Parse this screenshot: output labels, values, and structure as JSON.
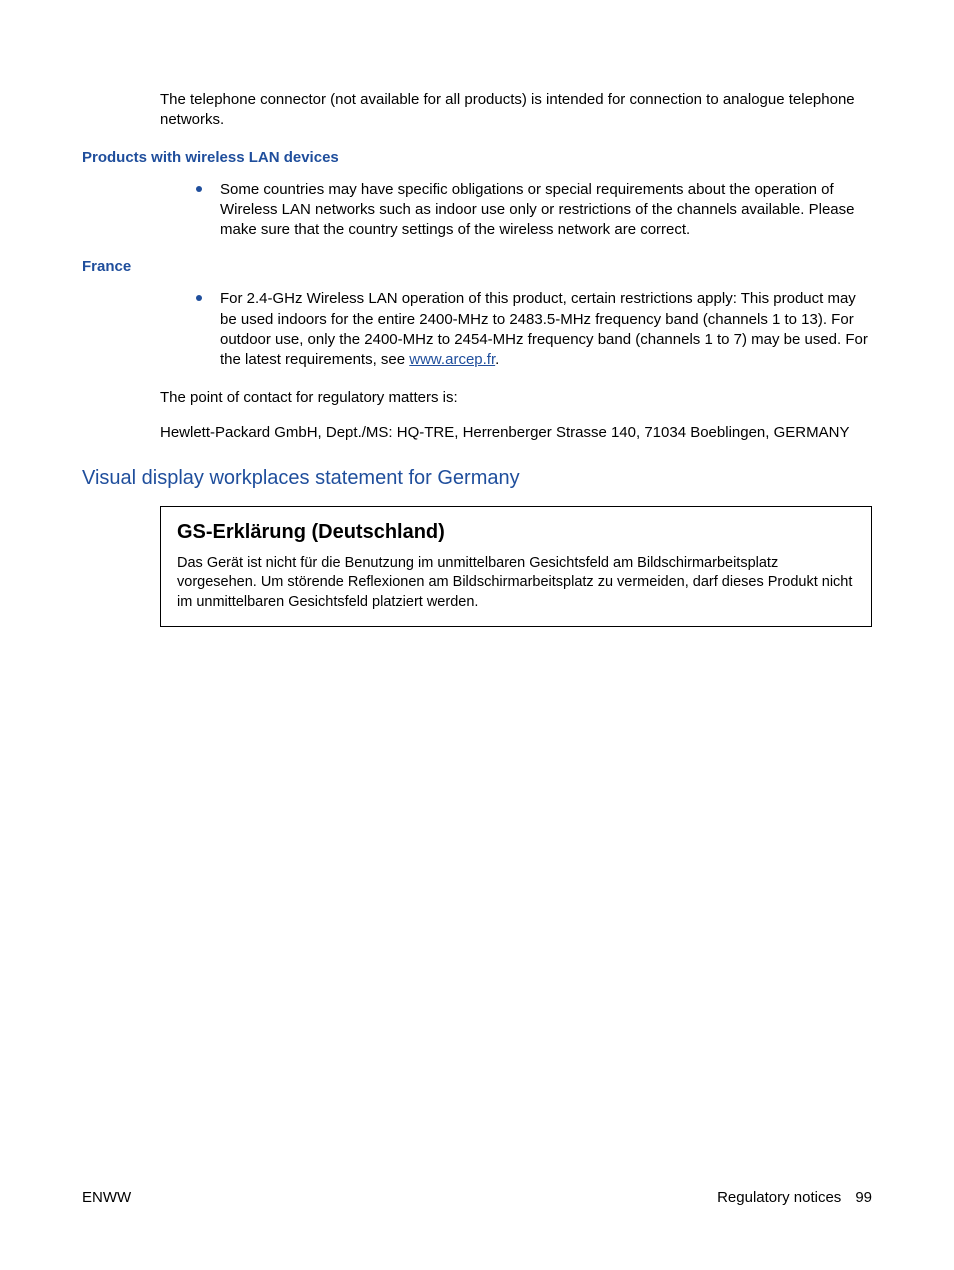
{
  "colors": {
    "heading_blue": "#1f4e9c",
    "bullet_blue": "#1f4e9c",
    "link_blue": "#1f4e9c",
    "text": "#000000",
    "background": "#ffffff",
    "box_border": "#000000"
  },
  "intro_paragraph": "The telephone connector (not available for all products) is intended for connection to analogue telephone networks.",
  "section_wlan": {
    "heading": "Products with wireless LAN devices",
    "bullet": "Some countries may have specific obligations or special requirements about the operation of Wireless LAN networks such as indoor use only or restrictions of the channels available. Please make sure that the country settings of the wireless network are correct."
  },
  "section_france": {
    "heading": "France",
    "bullet_pre": "For 2.4-GHz Wireless LAN operation of this product, certain restrictions apply: This product may be used indoors for the entire 2400-MHz to 2483.5-MHz frequency band (channels 1 to 13). For outdoor use, only the 2400-MHz to 2454-MHz frequency band (channels 1 to 7) may be used. For the latest requirements, see ",
    "link_text": "www.arcep.fr",
    "bullet_post": "."
  },
  "contact_intro": "The point of contact for regulatory matters is:",
  "contact_address": "Hewlett-Packard GmbH, Dept./MS: HQ-TRE, Herrenberger Strasse 140, 71034 Boeblingen, GERMANY",
  "germany_heading": "Visual display workplaces statement for Germany",
  "gs_box": {
    "title": "GS-Erklärung (Deutschland)",
    "body": "Das Gerät ist nicht für die Benutzung im unmittelbaren Gesichtsfeld am Bildschirmarbeitsplatz vorgesehen. Um störende Reflexionen am Bildschirmarbeitsplatz zu vermeiden, darf dieses Produkt nicht im unmittelbaren Gesichtsfeld platziert werden."
  },
  "footer": {
    "left": "ENWW",
    "right_label": "Regulatory notices",
    "page_number": "99"
  }
}
